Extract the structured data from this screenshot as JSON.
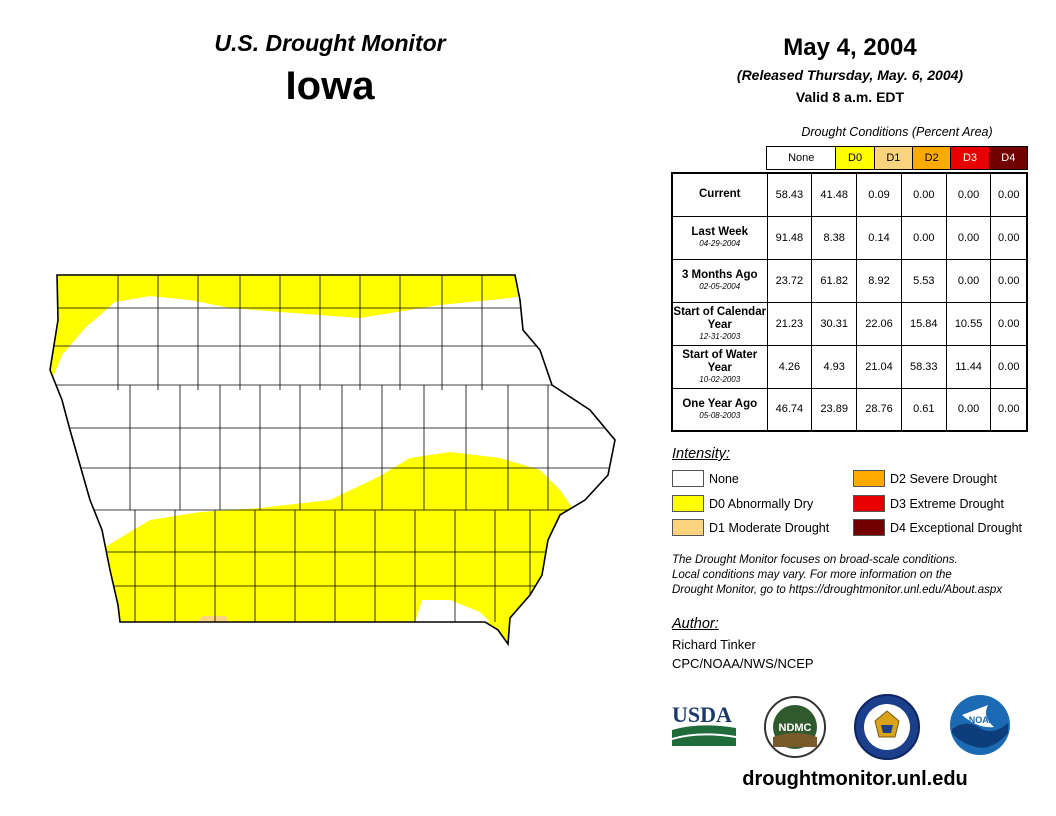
{
  "header": {
    "brand": "U.S. Drought Monitor",
    "state": "Iowa",
    "date": "May 4, 2004",
    "released": "(Released Thursday, May. 6, 2004)",
    "valid": "Valid 8 a.m. EDT"
  },
  "table": {
    "caption": "Drought Conditions (Percent Area)",
    "columns": [
      "None",
      "D0",
      "D1",
      "D2",
      "D3",
      "D4"
    ],
    "column_colors": [
      "#ffffff",
      "#ffff00",
      "#fcd37f",
      "#ffaa00",
      "#e60000",
      "#730000"
    ],
    "column_text_colors": [
      "#000000",
      "#000000",
      "#000000",
      "#000000",
      "#ffffff",
      "#ffffff"
    ],
    "rows": [
      {
        "label": "Current",
        "sub": "",
        "values": [
          "58.43",
          "41.48",
          "0.09",
          "0.00",
          "0.00",
          "0.00"
        ]
      },
      {
        "label": "Last Week",
        "sub": "04-29-2004",
        "values": [
          "91.48",
          "8.38",
          "0.14",
          "0.00",
          "0.00",
          "0.00"
        ]
      },
      {
        "label": "3 Months Ago",
        "sub": "02-05-2004",
        "values": [
          "23.72",
          "61.82",
          "8.92",
          "5.53",
          "0.00",
          "0.00"
        ]
      },
      {
        "label": "Start of Calendar Year",
        "sub": "12-31-2003",
        "values": [
          "21.23",
          "30.31",
          "22.06",
          "15.84",
          "10.55",
          "0.00"
        ]
      },
      {
        "label": "Start of Water Year",
        "sub": "10-02-2003",
        "values": [
          "4.26",
          "4.93",
          "21.04",
          "58.33",
          "11.44",
          "0.00"
        ]
      },
      {
        "label": "One Year Ago",
        "sub": "05-08-2003",
        "values": [
          "46.74",
          "23.89",
          "28.76",
          "0.61",
          "0.00",
          "0.00"
        ]
      }
    ]
  },
  "legend": {
    "title": "Intensity:",
    "items": [
      {
        "label": "None",
        "color": "#ffffff"
      },
      {
        "label": "D0 Abnormally Dry",
        "color": "#ffff00"
      },
      {
        "label": "D1 Moderate Drought",
        "color": "#fcd37f"
      },
      {
        "label": "D2 Severe Drought",
        "color": "#ffaa00"
      },
      {
        "label": "D3 Extreme Drought",
        "color": "#e60000"
      },
      {
        "label": "D4 Exceptional Drought",
        "color": "#730000"
      }
    ]
  },
  "note": {
    "line1": "The Drought Monitor focuses on broad-scale conditions.",
    "line2": "Local conditions may vary. For more information on the",
    "line3": "Drought Monitor, go to https://droughtmonitor.unl.edu/About.aspx"
  },
  "author": {
    "title": "Author:",
    "name": "Richard Tinker",
    "org": "CPC/NOAA/NWS/NCEP"
  },
  "logos": {
    "usda": "USDA",
    "ndmc": "NDMC",
    "noaa": "NOAA"
  },
  "website": "droughtmonitor.unl.edu"
}
